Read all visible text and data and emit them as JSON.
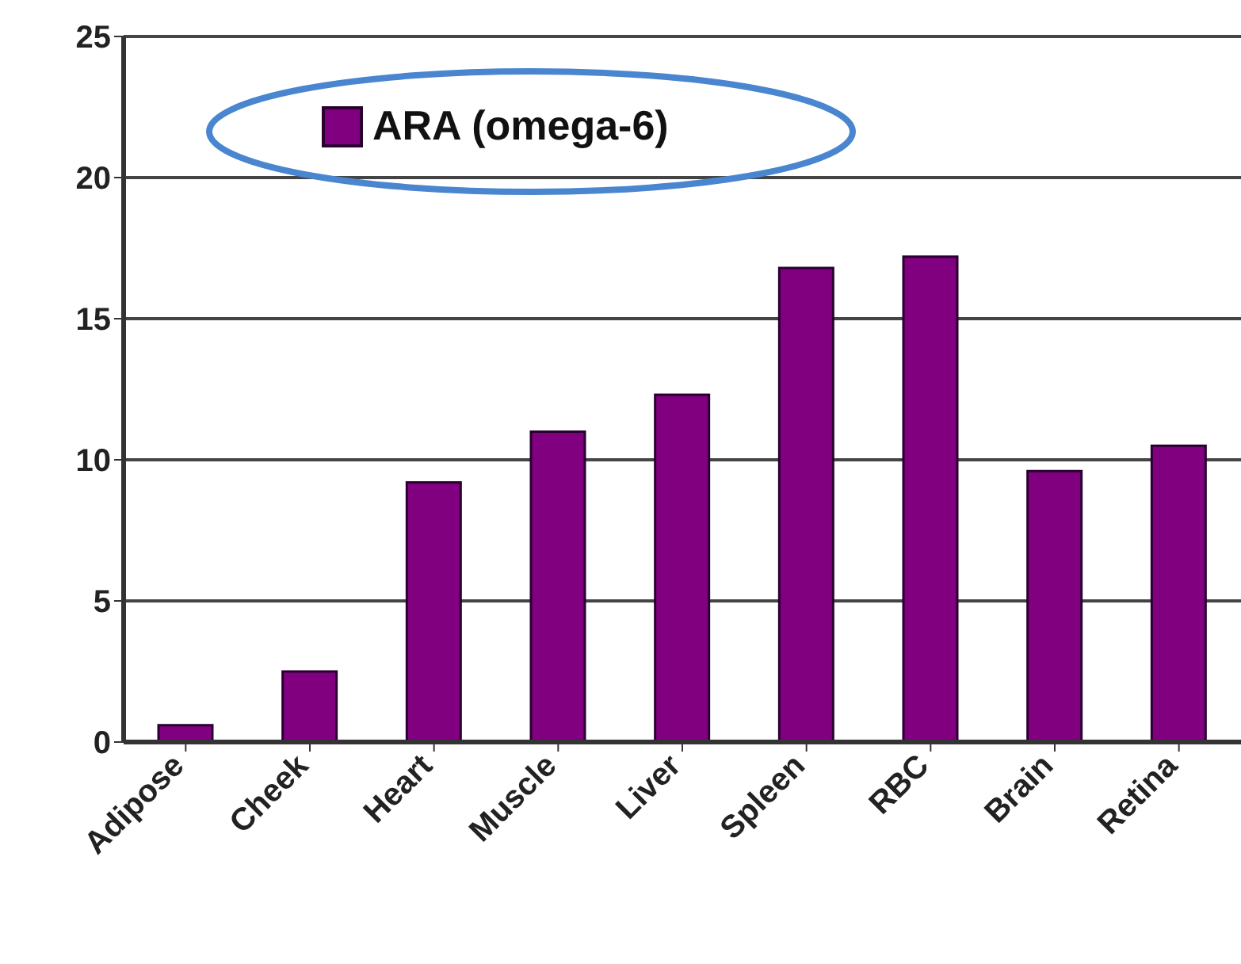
{
  "chart_data": {
    "type": "bar",
    "categories": [
      "Adipose",
      "Cheek",
      "Heart",
      "Muscle",
      "Liver",
      "Spleen",
      "RBC",
      "Brain",
      "Retina"
    ],
    "series": [
      {
        "name": "ARA (omega-6)",
        "color": "#800080",
        "values": [
          0.6,
          2.5,
          9.2,
          11.0,
          12.3,
          16.8,
          17.2,
          9.6,
          10.5
        ]
      }
    ],
    "ylim": [
      0,
      25
    ],
    "yticks": [
      0,
      5,
      10,
      15,
      20,
      25
    ],
    "grid": "y",
    "legend": "top left"
  }
}
